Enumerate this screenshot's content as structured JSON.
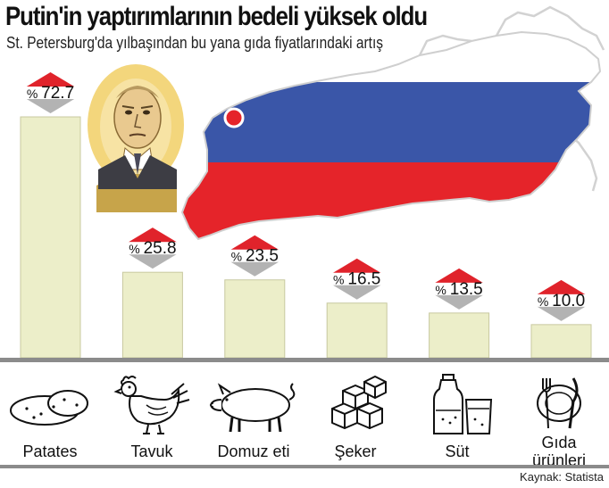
{
  "title": "Putin'in yaptırımlarının bedeli yüksek oldu",
  "subtitle": "St. Petersburg'da yılbaşından bu yana gıda fiyatlarındaki artış",
  "source": "Kaynak: Statista",
  "chart_data": {
    "type": "bar",
    "title": "Putin'in yaptırımlarının bedeli yüksek oldu",
    "subtitle": "St. Petersburg'da yılbaşından bu yana gıda fiyatlarındaki artış",
    "categories": [
      "Patates",
      "Tavuk",
      "Domuz eti",
      "Şeker",
      "Süt",
      "Gıda ürünleri"
    ],
    "values": [
      72.7,
      25.8,
      23.5,
      16.5,
      13.5,
      10.0
    ],
    "value_labels": [
      "72.7",
      "25.8",
      "23.5",
      "16.5",
      "13.5",
      "10.0"
    ],
    "value_prefix": "%",
    "ylim": [
      0,
      80
    ],
    "grid": false,
    "legend": "none"
  },
  "items": [
    {
      "label_lines": [
        "Patates"
      ],
      "icon": "potato-icon"
    },
    {
      "label_lines": [
        "Tavuk"
      ],
      "icon": "chicken-icon"
    },
    {
      "label_lines": [
        "Domuz eti"
      ],
      "icon": "pig-icon"
    },
    {
      "label_lines": [
        "Şeker"
      ],
      "icon": "sugar-cubes-icon"
    },
    {
      "label_lines": [
        "Süt"
      ],
      "icon": "milk-icon"
    },
    {
      "label_lines": [
        "Gıda",
        "ürünleri"
      ],
      "icon": "plate-fork-knife-icon"
    }
  ],
  "colors": {
    "bar_fill": "#eceec9",
    "bar_stroke": "#c8c9a0",
    "badge_up": "#e0232b",
    "badge_down": "#b3b3b3",
    "flag_white": "#ffffff",
    "flag_blue": "#3a56a8",
    "flag_red": "#e5242a",
    "map_outline": "#d0d0d0",
    "city_marker": "#e5242a"
  }
}
